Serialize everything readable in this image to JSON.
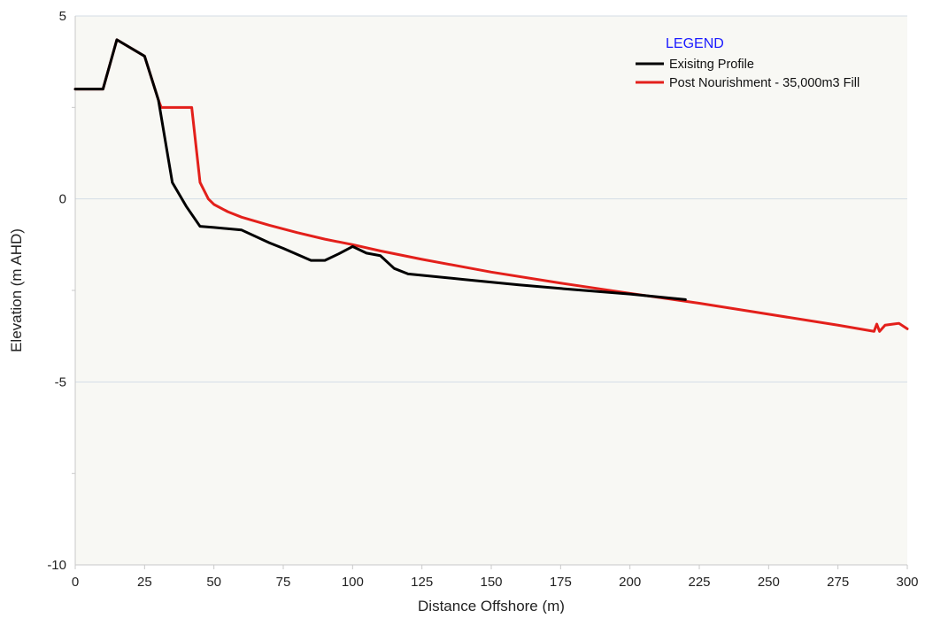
{
  "chart_data": {
    "type": "line",
    "title": "",
    "xlabel": "Distance Offshore (m)",
    "ylabel": "Elevation (m AHD)",
    "xlim": [
      0,
      300
    ],
    "ylim": [
      -10,
      5
    ],
    "x_ticks": [
      0,
      25,
      50,
      75,
      100,
      125,
      150,
      175,
      200,
      225,
      250,
      275,
      300
    ],
    "y_ticks": [
      5,
      0,
      -5,
      -10
    ],
    "grid": "horizontal",
    "plot_background": "#f8f8f4",
    "legend": {
      "title": "LEGEND",
      "placement": "top-right"
    },
    "series": [
      {
        "name": "Exisitng Profile",
        "color": "#000000",
        "points": [
          [
            0,
            3.0
          ],
          [
            10,
            3.0
          ],
          [
            15,
            4.35
          ],
          [
            25,
            3.9
          ],
          [
            30,
            2.7
          ],
          [
            35,
            0.45
          ],
          [
            40,
            -0.2
          ],
          [
            45,
            -0.75
          ],
          [
            50,
            -0.78
          ],
          [
            60,
            -0.85
          ],
          [
            70,
            -1.2
          ],
          [
            75,
            -1.35
          ],
          [
            85,
            -1.68
          ],
          [
            90,
            -1.68
          ],
          [
            95,
            -1.5
          ],
          [
            100,
            -1.3
          ],
          [
            105,
            -1.48
          ],
          [
            110,
            -1.55
          ],
          [
            115,
            -1.9
          ],
          [
            120,
            -2.05
          ],
          [
            140,
            -2.2
          ],
          [
            160,
            -2.35
          ],
          [
            180,
            -2.48
          ],
          [
            200,
            -2.6
          ],
          [
            220,
            -2.75
          ]
        ]
      },
      {
        "name": "Post Nourishment - 35,000m3 Fill",
        "color": "#e3201b",
        "points": [
          [
            0,
            3.0
          ],
          [
            10,
            3.0
          ],
          [
            15,
            4.35
          ],
          [
            25,
            3.9
          ],
          [
            30,
            2.7
          ],
          [
            31,
            2.5
          ],
          [
            40,
            2.5
          ],
          [
            42,
            2.5
          ],
          [
            45,
            0.45
          ],
          [
            48,
            0.0
          ],
          [
            50,
            -0.15
          ],
          [
            55,
            -0.35
          ],
          [
            60,
            -0.5
          ],
          [
            70,
            -0.72
          ],
          [
            80,
            -0.92
          ],
          [
            90,
            -1.1
          ],
          [
            100,
            -1.25
          ],
          [
            110,
            -1.42
          ],
          [
            125,
            -1.65
          ],
          [
            150,
            -2.0
          ],
          [
            175,
            -2.3
          ],
          [
            200,
            -2.58
          ],
          [
            225,
            -2.85
          ],
          [
            250,
            -3.15
          ],
          [
            275,
            -3.45
          ],
          [
            288,
            -3.62
          ],
          [
            289,
            -3.42
          ],
          [
            290,
            -3.62
          ],
          [
            292,
            -3.45
          ],
          [
            295,
            -3.42
          ],
          [
            297,
            -3.4
          ],
          [
            300,
            -3.55
          ]
        ]
      }
    ]
  }
}
